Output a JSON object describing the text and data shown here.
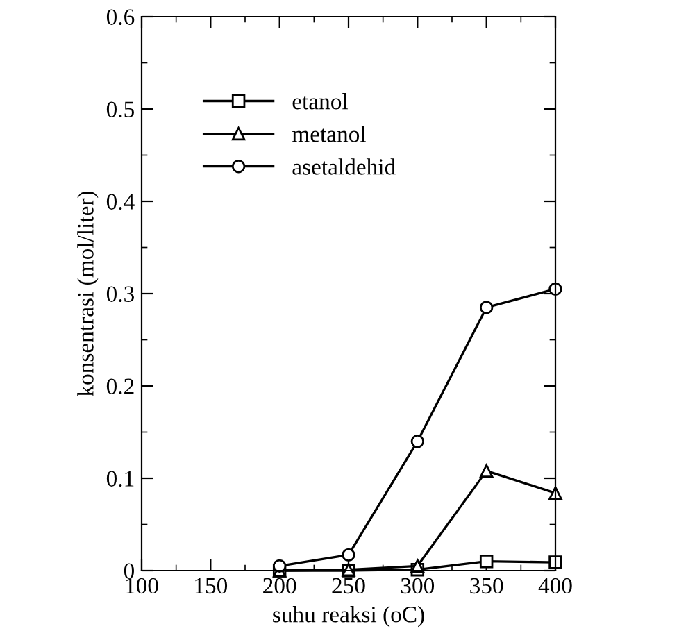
{
  "chart_data": {
    "type": "line",
    "xlabel": "suhu reaksi (oC)",
    "ylabel": "konsentrasi (mol/liter)",
    "x": [
      200,
      250,
      300,
      350,
      400
    ],
    "series": [
      {
        "name": "etanol",
        "color": "#000000",
        "marker": "square",
        "values": [
          0,
          0,
          0.001,
          0.01,
          0.009
        ]
      },
      {
        "name": "metanol",
        "color": "#000000",
        "marker": "triangle",
        "values": [
          0,
          0.001,
          0.005,
          0.108,
          0.084
        ]
      },
      {
        "name": "asetaldehid",
        "color": "#000000",
        "marker": "circle",
        "values": [
          0.005,
          0.017,
          0.14,
          0.285,
          0.305
        ]
      }
    ],
    "xlim": [
      100,
      400
    ],
    "xticks": [
      100,
      150,
      200,
      250,
      300,
      350,
      400
    ],
    "ylim": [
      0,
      0.6
    ],
    "yticks": [
      0,
      0.1,
      0.2,
      0.3,
      0.4,
      0.5,
      0.6
    ],
    "grid": false,
    "legend": "top left",
    "line_style": "solid"
  }
}
